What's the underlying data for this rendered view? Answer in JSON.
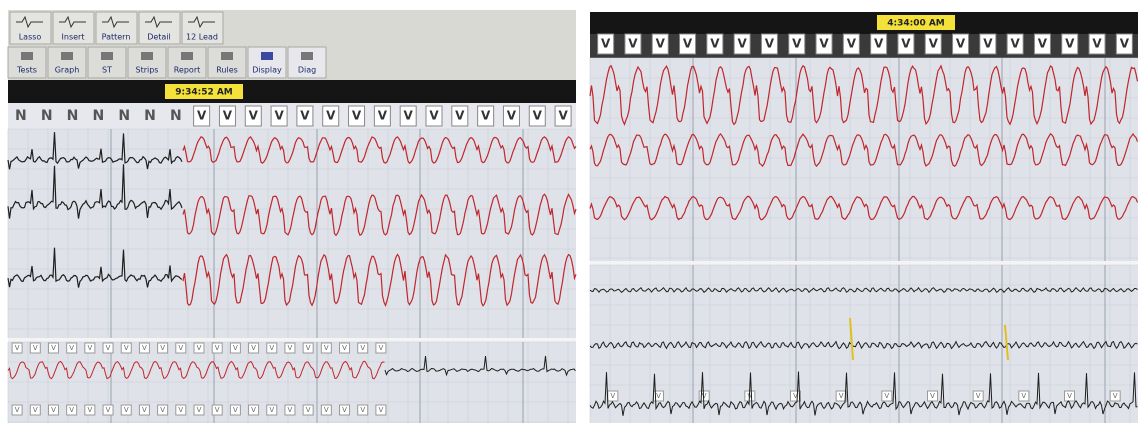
{
  "left": {
    "toolbar_row1": [
      "Lasso",
      "Insert",
      "Pattern",
      "Detail",
      "12 Lead"
    ],
    "toolbar_row2": [
      "Tests",
      "Graph",
      "ST",
      "Strips",
      "Report",
      "Rules",
      "Display",
      "Diag"
    ],
    "time": "9:34:52 AM",
    "beat_labels": [
      "N",
      "N",
      "N",
      "N",
      "N",
      "N",
      "N",
      "V",
      "V",
      "V",
      "V",
      "V",
      "V",
      "V",
      "V",
      "V",
      "V",
      "V",
      "V",
      "V",
      "V",
      "V"
    ],
    "strip1_labels": [
      "V",
      "V",
      "V",
      "V",
      "V",
      "V",
      "V",
      "V",
      "V",
      "V",
      "V",
      "V",
      "V",
      "V",
      "V",
      "V",
      "V",
      "V",
      "V",
      "V",
      "V"
    ],
    "strip2_labels": [
      "V",
      "V",
      "V",
      "V",
      "V",
      "V",
      "V",
      "V",
      "V",
      "V",
      "V",
      "V",
      "V",
      "V",
      "V",
      "V",
      "V",
      "V",
      "V",
      "V",
      "V"
    ]
  },
  "right": {
    "time": "4:34:00 AM",
    "beat_labels": [
      "V",
      "V",
      "V",
      "V",
      "V",
      "V",
      "V",
      "V",
      "V",
      "V",
      "V",
      "V",
      "V",
      "V",
      "V",
      "V",
      "V",
      "V",
      "V",
      "V"
    ],
    "strip_labels": [
      "V",
      "V",
      "V",
      "V",
      "V",
      "V",
      "V",
      "V",
      "V",
      "V",
      "V",
      "V"
    ]
  }
}
